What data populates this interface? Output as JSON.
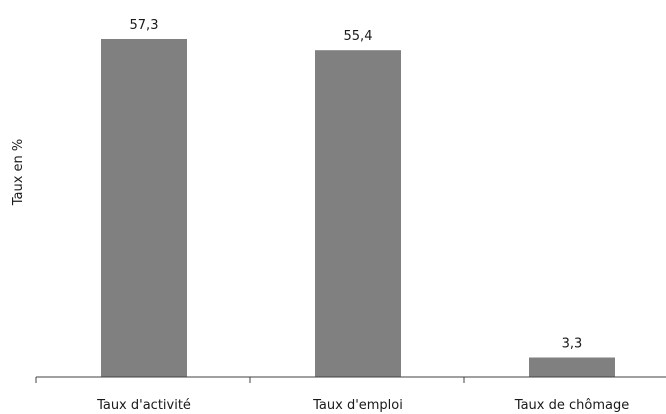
{
  "chart_data": {
    "type": "bar",
    "categories": [
      "Taux d'activité",
      "Taux d'emploi",
      "Taux de chômage"
    ],
    "values": [
      57.3,
      55.4,
      3.3
    ],
    "value_labels": [
      "57,3",
      "55,4",
      "3,3"
    ],
    "ylabel": "Taux en %",
    "ylim": [
      0,
      60
    ],
    "grid": false,
    "legend": "none",
    "bar_color": "#808080"
  }
}
